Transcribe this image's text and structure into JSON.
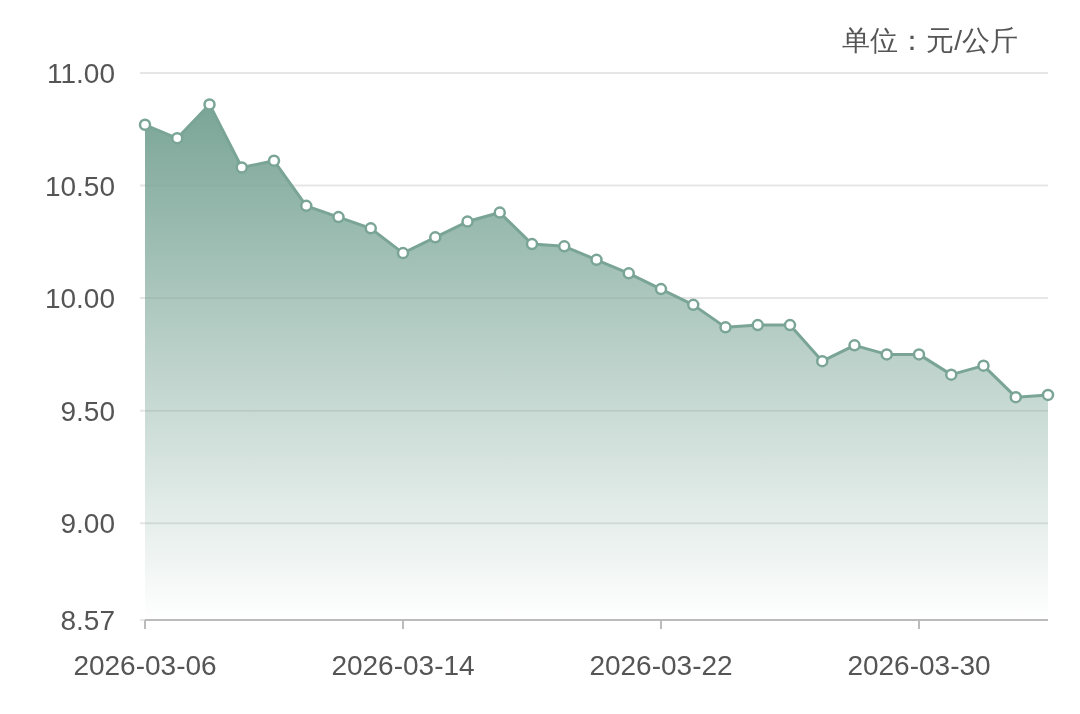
{
  "chart_data": {
    "type": "area",
    "annotations": [
      "单位：元/公斤"
    ],
    "x": [
      "2026-03-06",
      "2026-03-07",
      "2026-03-08",
      "2026-03-09",
      "2026-03-10",
      "2026-03-11",
      "2026-03-12",
      "2026-03-13",
      "2026-03-14",
      "2026-03-15",
      "2026-03-16",
      "2026-03-17",
      "2026-03-18",
      "2026-03-19",
      "2026-03-20",
      "2026-03-21",
      "2026-03-22",
      "2026-03-23",
      "2026-03-24",
      "2026-03-25",
      "2026-03-26",
      "2026-03-27",
      "2026-03-28",
      "2026-03-29",
      "2026-03-30",
      "2026-03-31",
      "2026-04-01",
      "2026-04-02",
      "2026-04-03"
    ],
    "series": [
      {
        "color": "#7aa596",
        "values": [
          10.77,
          10.71,
          10.86,
          10.58,
          10.61,
          10.41,
          10.36,
          10.31,
          10.2,
          10.27,
          10.34,
          10.38,
          10.24,
          10.23,
          10.17,
          10.11,
          10.04,
          9.97,
          9.87,
          9.88,
          9.88,
          9.72,
          9.79,
          9.75,
          9.75,
          9.66,
          9.7,
          9.56,
          9.57
        ]
      }
    ],
    "xlim": [
      "2026-03-06",
      "2026-04-03"
    ],
    "xticks": [
      "2026-03-06",
      "2026-03-14",
      "2026-03-22",
      "2026-03-30"
    ],
    "ylim": [
      8.57,
      11.0
    ],
    "yticks": [
      {
        "value": 8.57,
        "label": "8.57"
      },
      {
        "value": 9,
        "label": "9.00"
      },
      {
        "value": 9.5,
        "label": "9.50"
      },
      {
        "value": 10,
        "label": "10.00"
      },
      {
        "value": 10.5,
        "label": "10.50"
      },
      {
        "value": 11,
        "label": "11.00"
      }
    ],
    "grid": "y",
    "marker": "circle",
    "line_style": "solid"
  }
}
